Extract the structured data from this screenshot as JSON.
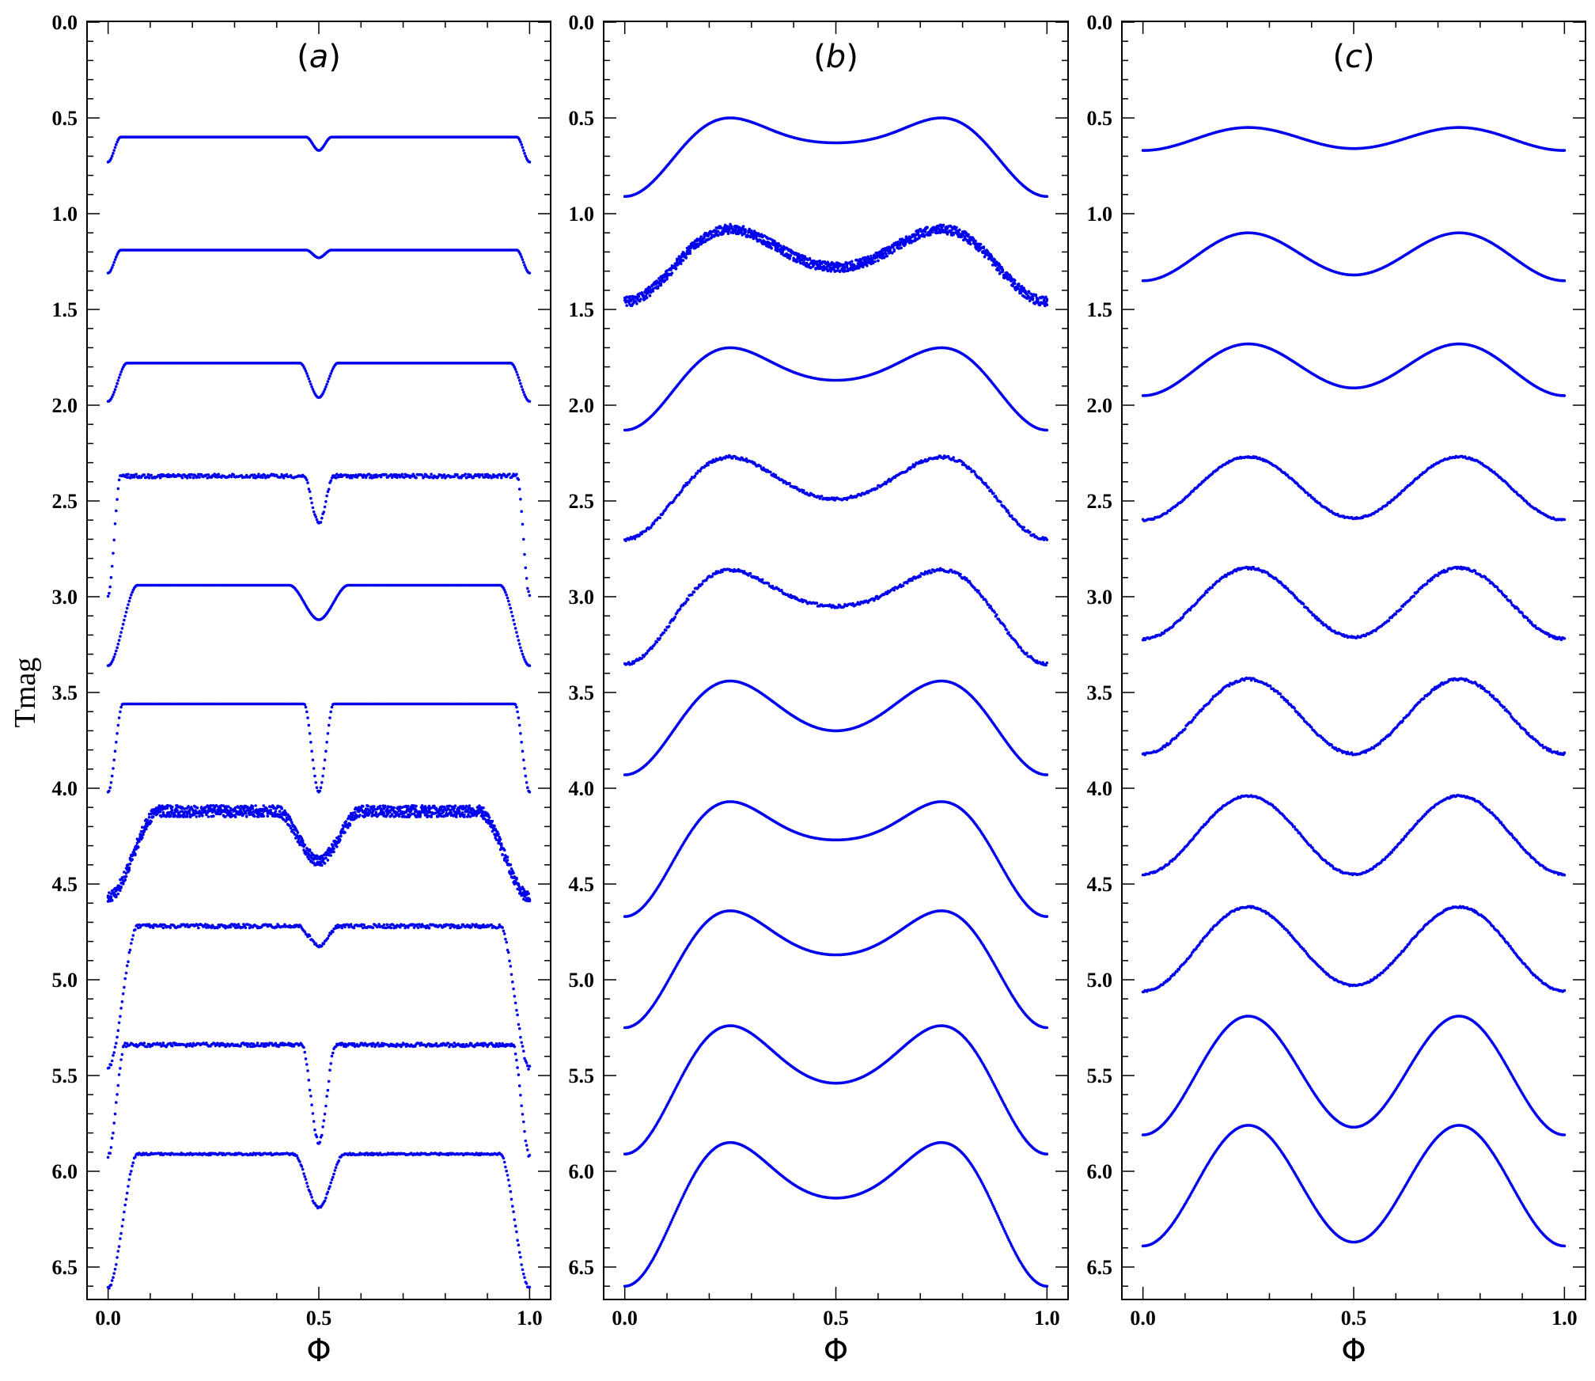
{
  "chart_data": {
    "type": "scatter",
    "ylabel": "Tmag",
    "xlabel": "Φ",
    "ylim": [
      0.0,
      6.65
    ],
    "xlim": [
      -0.05,
      1.05
    ],
    "y_inverted": true,
    "yticks": [
      "0.0",
      "0.5",
      "1.0",
      "1.5",
      "2.0",
      "2.5",
      "3.0",
      "3.5",
      "4.0",
      "4.5",
      "5.0",
      "5.5",
      "6.0",
      "6.5"
    ],
    "xticks": [
      "0.0",
      "0.5",
      "1.0"
    ],
    "color": "#0000ee",
    "panels": [
      {
        "title_open": "(",
        "title_letter": "a",
        "title_close": ")",
        "curves": [
          {
            "kind": "flat",
            "base": 0.6,
            "ecl1": 0.73,
            "ecl2": 0.67,
            "w1": 0.03,
            "w2": 0.03,
            "scatter": 0
          },
          {
            "kind": "flat",
            "base": 1.19,
            "ecl1": 1.31,
            "ecl2": 1.23,
            "w1": 0.03,
            "w2": 0.03,
            "scatter": 0
          },
          {
            "kind": "flat",
            "base": 1.78,
            "ecl1": 1.98,
            "ecl2": 1.96,
            "w1": 0.045,
            "w2": 0.045,
            "scatter": 0
          },
          {
            "kind": "flat",
            "base": 2.37,
            "ecl1": 2.99,
            "ecl2": 2.62,
            "w1": 0.03,
            "w2": 0.035,
            "scatter": 0.01
          },
          {
            "kind": "flat",
            "base": 2.94,
            "ecl1": 3.36,
            "ecl2": 3.12,
            "w1": 0.07,
            "w2": 0.07,
            "scatter": 0
          },
          {
            "kind": "flat",
            "base": 3.56,
            "ecl1": 4.02,
            "ecl2": 4.02,
            "w1": 0.035,
            "w2": 0.035,
            "scatter": 0
          },
          {
            "kind": "flat",
            "base": 4.12,
            "ecl1": 4.57,
            "ecl2": 4.38,
            "w1": 0.12,
            "w2": 0.1,
            "scatter": 0.03
          },
          {
            "kind": "flat",
            "base": 4.72,
            "ecl1": 5.46,
            "ecl2": 4.82,
            "w1": 0.07,
            "w2": 0.05,
            "scatter": 0.01
          },
          {
            "kind": "flat",
            "base": 5.34,
            "ecl1": 5.92,
            "ecl2": 5.85,
            "w1": 0.04,
            "w2": 0.04,
            "scatter": 0.01
          },
          {
            "kind": "flat",
            "base": 5.91,
            "ecl1": 6.61,
            "ecl2": 6.19,
            "w1": 0.07,
            "w2": 0.06,
            "scatter": 0.005
          }
        ]
      },
      {
        "title_open": "(",
        "title_letter": "b",
        "title_close": ")",
        "curves": [
          {
            "kind": "round",
            "max": 0.5,
            "ecl1": 0.91,
            "ecl2": 0.63,
            "scatter": 0
          },
          {
            "kind": "round",
            "max": 1.08,
            "ecl1": 1.46,
            "ecl2": 1.28,
            "scatter": 0.025
          },
          {
            "kind": "round",
            "max": 1.7,
            "ecl1": 2.13,
            "ecl2": 1.87,
            "scatter": 0
          },
          {
            "kind": "round",
            "max": 2.27,
            "ecl1": 2.7,
            "ecl2": 2.49,
            "scatter": 0.008
          },
          {
            "kind": "round",
            "max": 2.86,
            "ecl1": 3.35,
            "ecl2": 3.05,
            "scatter": 0.008
          },
          {
            "kind": "round",
            "max": 3.44,
            "ecl1": 3.93,
            "ecl2": 3.7,
            "scatter": 0
          },
          {
            "kind": "round",
            "max": 4.07,
            "ecl1": 4.67,
            "ecl2": 4.27,
            "scatter": 0
          },
          {
            "kind": "round",
            "max": 4.64,
            "ecl1": 5.25,
            "ecl2": 4.87,
            "scatter": 0
          },
          {
            "kind": "round",
            "max": 5.24,
            "ecl1": 5.91,
            "ecl2": 5.54,
            "scatter": 0
          },
          {
            "kind": "round",
            "max": 5.85,
            "ecl1": 6.6,
            "ecl2": 6.14,
            "scatter": 0
          }
        ]
      },
      {
        "title_open": "(",
        "title_letter": "c",
        "title_close": ")",
        "curves": [
          {
            "kind": "round",
            "max": 0.55,
            "ecl1": 0.67,
            "ecl2": 0.66,
            "scatter": 0
          },
          {
            "kind": "round",
            "max": 1.1,
            "ecl1": 1.35,
            "ecl2": 1.32,
            "scatter": 0
          },
          {
            "kind": "round",
            "max": 1.68,
            "ecl1": 1.95,
            "ecl2": 1.91,
            "scatter": 0
          },
          {
            "kind": "round",
            "max": 2.27,
            "ecl1": 2.6,
            "ecl2": 2.59,
            "scatter": 0.004
          },
          {
            "kind": "round",
            "max": 2.85,
            "ecl1": 3.22,
            "ecl2": 3.21,
            "scatter": 0.006
          },
          {
            "kind": "round",
            "max": 3.43,
            "ecl1": 3.82,
            "ecl2": 3.82,
            "scatter": 0.006
          },
          {
            "kind": "round",
            "max": 4.04,
            "ecl1": 4.45,
            "ecl2": 4.45,
            "scatter": 0.004
          },
          {
            "kind": "round",
            "max": 4.62,
            "ecl1": 5.06,
            "ecl2": 5.03,
            "scatter": 0.004
          },
          {
            "kind": "round",
            "max": 5.19,
            "ecl1": 5.81,
            "ecl2": 5.77,
            "scatter": 0
          },
          {
            "kind": "round",
            "max": 5.76,
            "ecl1": 6.39,
            "ecl2": 6.37,
            "scatter": 0
          }
        ]
      }
    ]
  }
}
